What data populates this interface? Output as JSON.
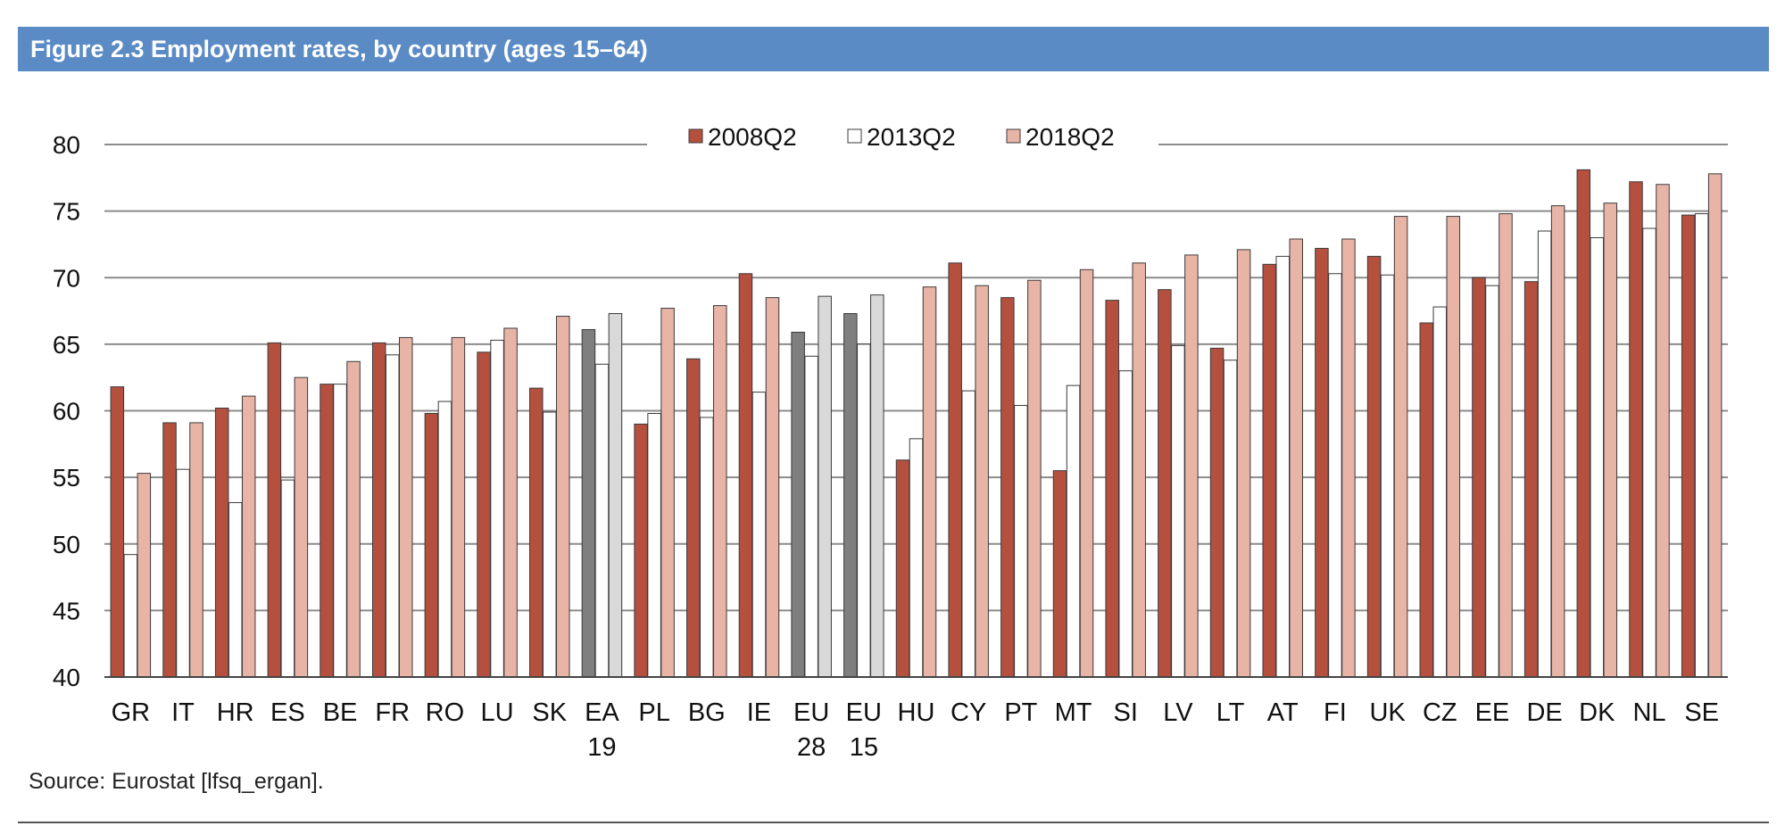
{
  "figure": {
    "title": "Figure 2.3 Employment rates, by country (ages 15–64)",
    "source": "Source: Eurostat [lfsq_ergan]."
  },
  "chart_data": {
    "type": "bar",
    "title": "",
    "xlabel": "",
    "ylabel": "",
    "ylim": [
      40,
      80
    ],
    "yticks": [
      40,
      45,
      50,
      55,
      60,
      65,
      70,
      75,
      80
    ],
    "grid": true,
    "legend": "top-center",
    "categories": [
      "GR",
      "IT",
      "HR",
      "ES",
      "BE",
      "FR",
      "RO",
      "LU",
      "SK",
      "EA 19",
      "PL",
      "BG",
      "IE",
      "EU 28",
      "EU 15",
      "HU",
      "CY",
      "PT",
      "MT",
      "SI",
      "LV",
      "LT",
      "AT",
      "FI",
      "UK",
      "CZ",
      "EE",
      "DE",
      "DK",
      "NL",
      "SE"
    ],
    "highlight_categories": [
      "EA 19",
      "EU 28",
      "EU 15"
    ],
    "series": [
      {
        "name": "2008Q2",
        "color": "#b5503f",
        "highlight_color": "#7f7f7f",
        "values": [
          61.8,
          59.1,
          60.2,
          65.1,
          62.0,
          65.1,
          59.8,
          64.4,
          61.7,
          66.1,
          59.0,
          63.9,
          70.3,
          65.9,
          67.3,
          56.3,
          71.1,
          68.5,
          55.5,
          68.3,
          69.1,
          64.7,
          71.0,
          72.2,
          71.6,
          66.6,
          70.0,
          69.7,
          78.1,
          77.2,
          74.7
        ]
      },
      {
        "name": "2013Q2",
        "color": "#ffffff",
        "highlight_color": "#ffffff",
        "values": [
          49.2,
          55.6,
          53.1,
          54.8,
          62.0,
          64.2,
          60.7,
          65.3,
          59.9,
          63.5,
          59.8,
          59.5,
          61.4,
          64.1,
          65.0,
          57.9,
          61.5,
          60.4,
          61.9,
          63.0,
          64.9,
          63.8,
          71.6,
          70.3,
          70.2,
          67.8,
          69.4,
          73.5,
          73.0,
          73.7,
          74.8
        ]
      },
      {
        "name": "2018Q2",
        "color": "#e8b4a6",
        "highlight_color": "#d9d9d9",
        "values": [
          55.3,
          59.1,
          61.1,
          62.5,
          63.7,
          65.5,
          65.5,
          66.2,
          67.1,
          67.3,
          67.7,
          67.9,
          68.5,
          68.6,
          68.7,
          69.3,
          69.4,
          69.8,
          70.6,
          71.1,
          71.7,
          72.1,
          72.9,
          72.9,
          74.6,
          74.6,
          74.8,
          75.4,
          75.6,
          77.0,
          77.8
        ]
      }
    ]
  }
}
